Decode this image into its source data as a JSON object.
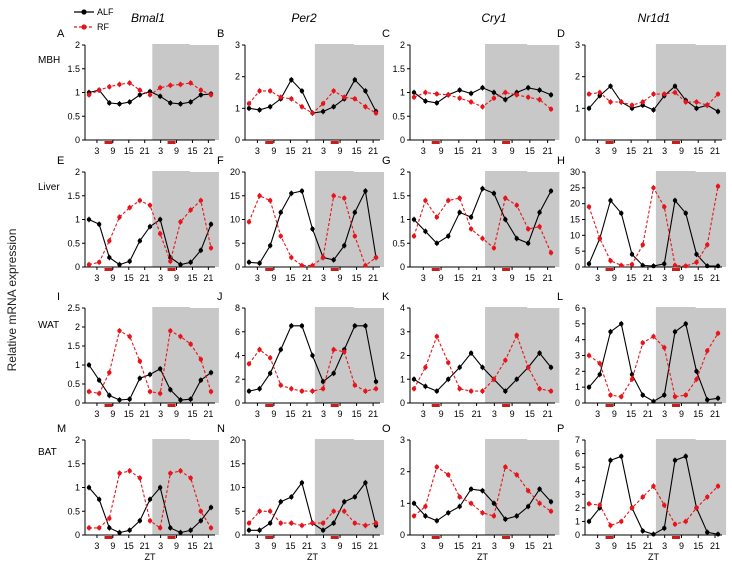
{
  "colors": {
    "alf": "#000000",
    "rf": "#e8141b",
    "night": "#c8c8c8",
    "feeding": "#c81e1e"
  },
  "global": {
    "ylabel": "Relative mRNA expression",
    "xlabel": "ZT",
    "legend": {
      "alf": "ALF",
      "rf": "RF",
      "placement": "top-left"
    },
    "genes": [
      "Bmal1",
      "Per2",
      "Cry1",
      "Nr1d1"
    ],
    "tissues": [
      "MBH",
      "Liver",
      "WAT",
      "BAT"
    ]
  },
  "chart_data": [
    {
      "letter": "A",
      "type": "line",
      "tissue": "MBH",
      "gene": "Bmal1",
      "ylim": [
        0,
        2
      ],
      "yticks": [
        "0",
        "0.5",
        "1",
        "1.5",
        "2"
      ],
      "xticklabels": [
        "3",
        "9",
        "15",
        "21",
        "3",
        "9",
        "15",
        "21"
      ],
      "series": [
        {
          "name": "ALF",
          "values": [
            1.0,
            1.05,
            0.78,
            0.76,
            0.8,
            0.95,
            1.02,
            0.92,
            0.78,
            0.76,
            0.8,
            0.95,
            0.97
          ]
        },
        {
          "name": "RF",
          "values": [
            0.95,
            1.05,
            1.12,
            1.17,
            1.2,
            1.05,
            0.95,
            1.1,
            1.15,
            1.17,
            1.2,
            1.05,
            0.95
          ]
        }
      ]
    },
    {
      "letter": "B",
      "type": "line",
      "tissue": "MBH",
      "gene": "Per2",
      "ylim": [
        0,
        3
      ],
      "yticks": [
        "0",
        "1",
        "2",
        "3"
      ],
      "xticklabels": [
        "3",
        "9",
        "15",
        "21",
        "3",
        "9",
        "15",
        "21"
      ],
      "series": [
        {
          "name": "ALF",
          "values": [
            1.0,
            0.95,
            1.05,
            1.3,
            1.9,
            1.55,
            0.85,
            0.9,
            1.05,
            1.3,
            1.9,
            1.55,
            0.9
          ]
        },
        {
          "name": "RF",
          "values": [
            1.15,
            1.55,
            1.55,
            1.35,
            1.3,
            1.05,
            0.85,
            1.15,
            1.55,
            1.35,
            1.3,
            1.05,
            0.85
          ]
        }
      ]
    },
    {
      "letter": "C",
      "type": "line",
      "tissue": "MBH",
      "gene": "Cry1",
      "ylim": [
        0,
        2
      ],
      "yticks": [
        "0",
        "0.5",
        "1",
        "1.5",
        "2"
      ],
      "xticklabels": [
        "3",
        "9",
        "15",
        "21",
        "3",
        "9",
        "15",
        "21"
      ],
      "series": [
        {
          "name": "ALF",
          "values": [
            1.0,
            0.82,
            0.78,
            0.95,
            1.05,
            0.98,
            1.1,
            1.0,
            0.85,
            1.0,
            1.1,
            1.05,
            0.95
          ]
        },
        {
          "name": "RF",
          "values": [
            0.9,
            1.0,
            0.97,
            0.95,
            0.88,
            0.8,
            0.7,
            0.88,
            1.0,
            0.95,
            0.9,
            0.85,
            0.65
          ]
        }
      ]
    },
    {
      "letter": "D",
      "type": "line",
      "tissue": "MBH",
      "gene": "Nr1d1",
      "ylim": [
        0,
        3
      ],
      "yticks": [
        "0",
        "1",
        "2",
        "3"
      ],
      "xticklabels": [
        "3",
        "9",
        "15",
        "21",
        "3",
        "9",
        "15",
        "21"
      ],
      "series": [
        {
          "name": "ALF",
          "values": [
            1.0,
            1.4,
            1.7,
            1.2,
            1.0,
            1.1,
            0.95,
            1.4,
            1.7,
            1.25,
            1.0,
            1.1,
            0.9
          ]
        },
        {
          "name": "RF",
          "values": [
            1.45,
            1.5,
            1.2,
            1.2,
            1.1,
            1.2,
            1.45,
            1.45,
            1.5,
            1.2,
            1.2,
            1.1,
            1.45
          ]
        }
      ]
    },
    {
      "letter": "E",
      "type": "line",
      "tissue": "Liver",
      "gene": "Bmal1",
      "ylim": [
        0,
        2
      ],
      "yticks": [
        "0",
        "0.5",
        "1",
        "1.5",
        "2"
      ],
      "xticklabels": [
        "3",
        "9",
        "15",
        "21",
        "3",
        "9",
        "15",
        "21"
      ],
      "series": [
        {
          "name": "ALF",
          "values": [
            1.0,
            0.9,
            0.2,
            0.05,
            0.12,
            0.55,
            0.85,
            1.0,
            0.2,
            0.05,
            0.1,
            0.35,
            0.9
          ]
        },
        {
          "name": "RF",
          "values": [
            0.05,
            0.1,
            0.55,
            1.05,
            1.25,
            1.4,
            1.3,
            0.7,
            0.12,
            0.95,
            1.2,
            1.4,
            0.4
          ]
        }
      ]
    },
    {
      "letter": "F",
      "type": "line",
      "tissue": "Liver",
      "gene": "Per2",
      "ylim": [
        0,
        20
      ],
      "yticks": [
        "0",
        "5",
        "10",
        "15",
        "20"
      ],
      "xticklabels": [
        "3",
        "9",
        "15",
        "21",
        "3",
        "9",
        "15",
        "21"
      ],
      "series": [
        {
          "name": "ALF",
          "values": [
            1.0,
            0.8,
            4.5,
            11.5,
            15.5,
            16.0,
            8.0,
            2.0,
            1.5,
            4.5,
            11.5,
            16.0,
            2.0
          ]
        },
        {
          "name": "RF",
          "values": [
            9.5,
            15.0,
            14.0,
            6.5,
            2.0,
            0.3,
            0.3,
            2.0,
            15.0,
            14.5,
            6.5,
            0.3,
            2.0
          ]
        }
      ]
    },
    {
      "letter": "G",
      "type": "line",
      "tissue": "Liver",
      "gene": "Cry1",
      "ylim": [
        0,
        2
      ],
      "yticks": [
        "0",
        "0.5",
        "1",
        "1.5",
        "2"
      ],
      "xticklabels": [
        "3",
        "9",
        "15",
        "21",
        "3",
        "9",
        "15",
        "21"
      ],
      "series": [
        {
          "name": "ALF",
          "values": [
            1.0,
            0.75,
            0.5,
            0.65,
            1.15,
            1.05,
            1.65,
            1.55,
            1.0,
            0.6,
            0.5,
            1.15,
            1.6
          ]
        },
        {
          "name": "RF",
          "values": [
            0.65,
            1.4,
            1.05,
            1.4,
            1.45,
            0.8,
            0.6,
            0.4,
            1.45,
            1.3,
            0.8,
            0.85,
            0.3
          ]
        }
      ]
    },
    {
      "letter": "H",
      "type": "line",
      "tissue": "Liver",
      "gene": "Nr1d1",
      "ylim": [
        0,
        30
      ],
      "yticks": [
        "0",
        "5",
        "10",
        "15",
        "20",
        "25",
        "30"
      ],
      "xticklabels": [
        "3",
        "9",
        "15",
        "21",
        "3",
        "9",
        "15",
        "21"
      ],
      "series": [
        {
          "name": "ALF",
          "values": [
            1.0,
            9.0,
            21.0,
            17.0,
            4.0,
            0.5,
            0.3,
            1.0,
            21.0,
            17.0,
            4.0,
            0.3,
            0.3
          ]
        },
        {
          "name": "RF",
          "values": [
            19.0,
            9.0,
            2.0,
            0.5,
            0.8,
            7.0,
            25.0,
            19.0,
            0.5,
            0.3,
            1.5,
            7.0,
            25.5
          ]
        }
      ]
    },
    {
      "letter": "I",
      "type": "line",
      "tissue": "WAT",
      "gene": "Bmal1",
      "ylim": [
        0,
        2.5
      ],
      "yticks": [
        "0",
        "0.5",
        "1",
        "1.5",
        "2",
        "2.5"
      ],
      "xticklabels": [
        "3",
        "9",
        "15",
        "21",
        "3",
        "9",
        "15",
        "21"
      ],
      "series": [
        {
          "name": "ALF",
          "values": [
            1.0,
            0.6,
            0.2,
            0.08,
            0.1,
            0.65,
            0.75,
            0.9,
            0.35,
            0.08,
            0.1,
            0.6,
            0.8
          ]
        },
        {
          "name": "RF",
          "values": [
            0.3,
            0.25,
            0.8,
            1.9,
            1.75,
            1.1,
            0.3,
            0.25,
            1.9,
            1.75,
            1.55,
            1.15,
            0.3
          ]
        }
      ]
    },
    {
      "letter": "J",
      "type": "line",
      "tissue": "WAT",
      "gene": "Per2",
      "ylim": [
        0,
        8
      ],
      "yticks": [
        "0",
        "2",
        "4",
        "6",
        "8"
      ],
      "xticklabels": [
        "3",
        "9",
        "15",
        "21",
        "3",
        "9",
        "15",
        "21"
      ],
      "series": [
        {
          "name": "ALF",
          "values": [
            1.0,
            1.2,
            2.5,
            4.5,
            6.5,
            6.5,
            4.0,
            1.8,
            2.5,
            4.5,
            6.5,
            6.5,
            1.8
          ]
        },
        {
          "name": "RF",
          "values": [
            3.3,
            4.5,
            3.8,
            1.5,
            1.2,
            1.0,
            1.0,
            1.2,
            4.5,
            4.3,
            1.5,
            1.0,
            1.2
          ]
        }
      ]
    },
    {
      "letter": "K",
      "type": "line",
      "tissue": "WAT",
      "gene": "Cry1",
      "ylim": [
        0,
        4
      ],
      "yticks": [
        "0",
        "1",
        "2",
        "3",
        "4"
      ],
      "xticklabels": [
        "3",
        "9",
        "15",
        "21",
        "3",
        "9",
        "15",
        "21"
      ],
      "series": [
        {
          "name": "ALF",
          "values": [
            1.0,
            0.7,
            0.5,
            1.0,
            1.5,
            2.1,
            1.5,
            1.0,
            0.5,
            1.0,
            1.5,
            2.1,
            1.5
          ]
        },
        {
          "name": "RF",
          "values": [
            0.6,
            1.5,
            2.8,
            1.7,
            0.6,
            0.5,
            0.5,
            1.0,
            1.8,
            2.85,
            1.5,
            0.6,
            0.5
          ]
        }
      ]
    },
    {
      "letter": "L",
      "type": "line",
      "tissue": "WAT",
      "gene": "Nr1d1",
      "ylim": [
        0,
        6
      ],
      "yticks": [
        "0",
        "1",
        "2",
        "3",
        "4",
        "5",
        "6"
      ],
      "xticklabels": [
        "3",
        "9",
        "15",
        "21",
        "3",
        "9",
        "15",
        "21"
      ],
      "series": [
        {
          "name": "ALF",
          "values": [
            1.0,
            1.8,
            4.5,
            5.0,
            1.8,
            0.5,
            0.1,
            0.5,
            4.5,
            5.0,
            2.0,
            0.2,
            0.3
          ]
        },
        {
          "name": "RF",
          "values": [
            3.0,
            2.5,
            0.5,
            0.4,
            1.5,
            3.8,
            4.2,
            3.5,
            0.4,
            0.5,
            1.5,
            3.3,
            4.4
          ]
        }
      ]
    },
    {
      "letter": "M",
      "type": "line",
      "tissue": "BAT",
      "gene": "Bmal1",
      "ylim": [
        0,
        2
      ],
      "yticks": [
        "0",
        "0.5",
        "1",
        "1.5",
        "2"
      ],
      "xticklabels": [
        "3",
        "9",
        "15",
        "21",
        "3",
        "9",
        "15",
        "21"
      ],
      "series": [
        {
          "name": "ALF",
          "values": [
            1.0,
            0.75,
            0.15,
            0.05,
            0.1,
            0.3,
            0.75,
            1.0,
            0.15,
            0.05,
            0.1,
            0.3,
            0.58
          ]
        },
        {
          "name": "RF",
          "values": [
            0.15,
            0.15,
            0.35,
            1.3,
            1.35,
            1.2,
            0.3,
            0.15,
            1.3,
            1.35,
            1.2,
            0.5,
            0.15
          ]
        }
      ]
    },
    {
      "letter": "N",
      "type": "line",
      "tissue": "BAT",
      "gene": "Per2",
      "ylim": [
        0,
        20
      ],
      "yticks": [
        "0",
        "5",
        "10",
        "15",
        "20"
      ],
      "xticklabels": [
        "3",
        "9",
        "15",
        "21",
        "3",
        "9",
        "15",
        "21"
      ],
      "series": [
        {
          "name": "ALF",
          "values": [
            1.0,
            1.0,
            2.5,
            7.0,
            8.0,
            11.0,
            2.5,
            1.0,
            2.5,
            7.0,
            8.0,
            11.0,
            2.0
          ]
        },
        {
          "name": "RF",
          "values": [
            2.5,
            5.0,
            5.0,
            2.5,
            2.5,
            2.0,
            2.5,
            2.5,
            5.0,
            5.0,
            2.5,
            2.0,
            2.5
          ]
        }
      ]
    },
    {
      "letter": "O",
      "type": "line",
      "tissue": "BAT",
      "gene": "Cry1",
      "ylim": [
        0,
        3
      ],
      "yticks": [
        "0",
        "1",
        "2",
        "3"
      ],
      "xticklabels": [
        "3",
        "9",
        "15",
        "21",
        "3",
        "9",
        "15",
        "21"
      ],
      "series": [
        {
          "name": "ALF",
          "values": [
            1.0,
            0.6,
            0.45,
            0.7,
            0.9,
            1.45,
            1.4,
            1.0,
            0.5,
            0.6,
            0.9,
            1.45,
            1.05
          ]
        },
        {
          "name": "RF",
          "values": [
            0.6,
            0.9,
            2.15,
            1.9,
            1.2,
            1.0,
            0.7,
            0.6,
            2.15,
            1.9,
            1.4,
            1.0,
            0.75
          ]
        }
      ]
    },
    {
      "letter": "P",
      "type": "line",
      "tissue": "BAT",
      "gene": "Nr1d1",
      "ylim": [
        0,
        7
      ],
      "yticks": [
        "0",
        "1",
        "2",
        "3",
        "4",
        "5",
        "6",
        "7"
      ],
      "xticklabels": [
        "3",
        "9",
        "15",
        "21",
        "3",
        "9",
        "15",
        "21"
      ],
      "series": [
        {
          "name": "ALF",
          "values": [
            1.0,
            2.0,
            5.5,
            5.8,
            2.0,
            0.3,
            0.05,
            0.5,
            5.5,
            5.8,
            2.0,
            0.2,
            0.05
          ]
        },
        {
          "name": "RF",
          "values": [
            2.3,
            2.2,
            0.7,
            1.0,
            2.0,
            2.8,
            3.6,
            2.2,
            0.8,
            1.0,
            2.0,
            2.8,
            3.6
          ]
        }
      ]
    }
  ]
}
